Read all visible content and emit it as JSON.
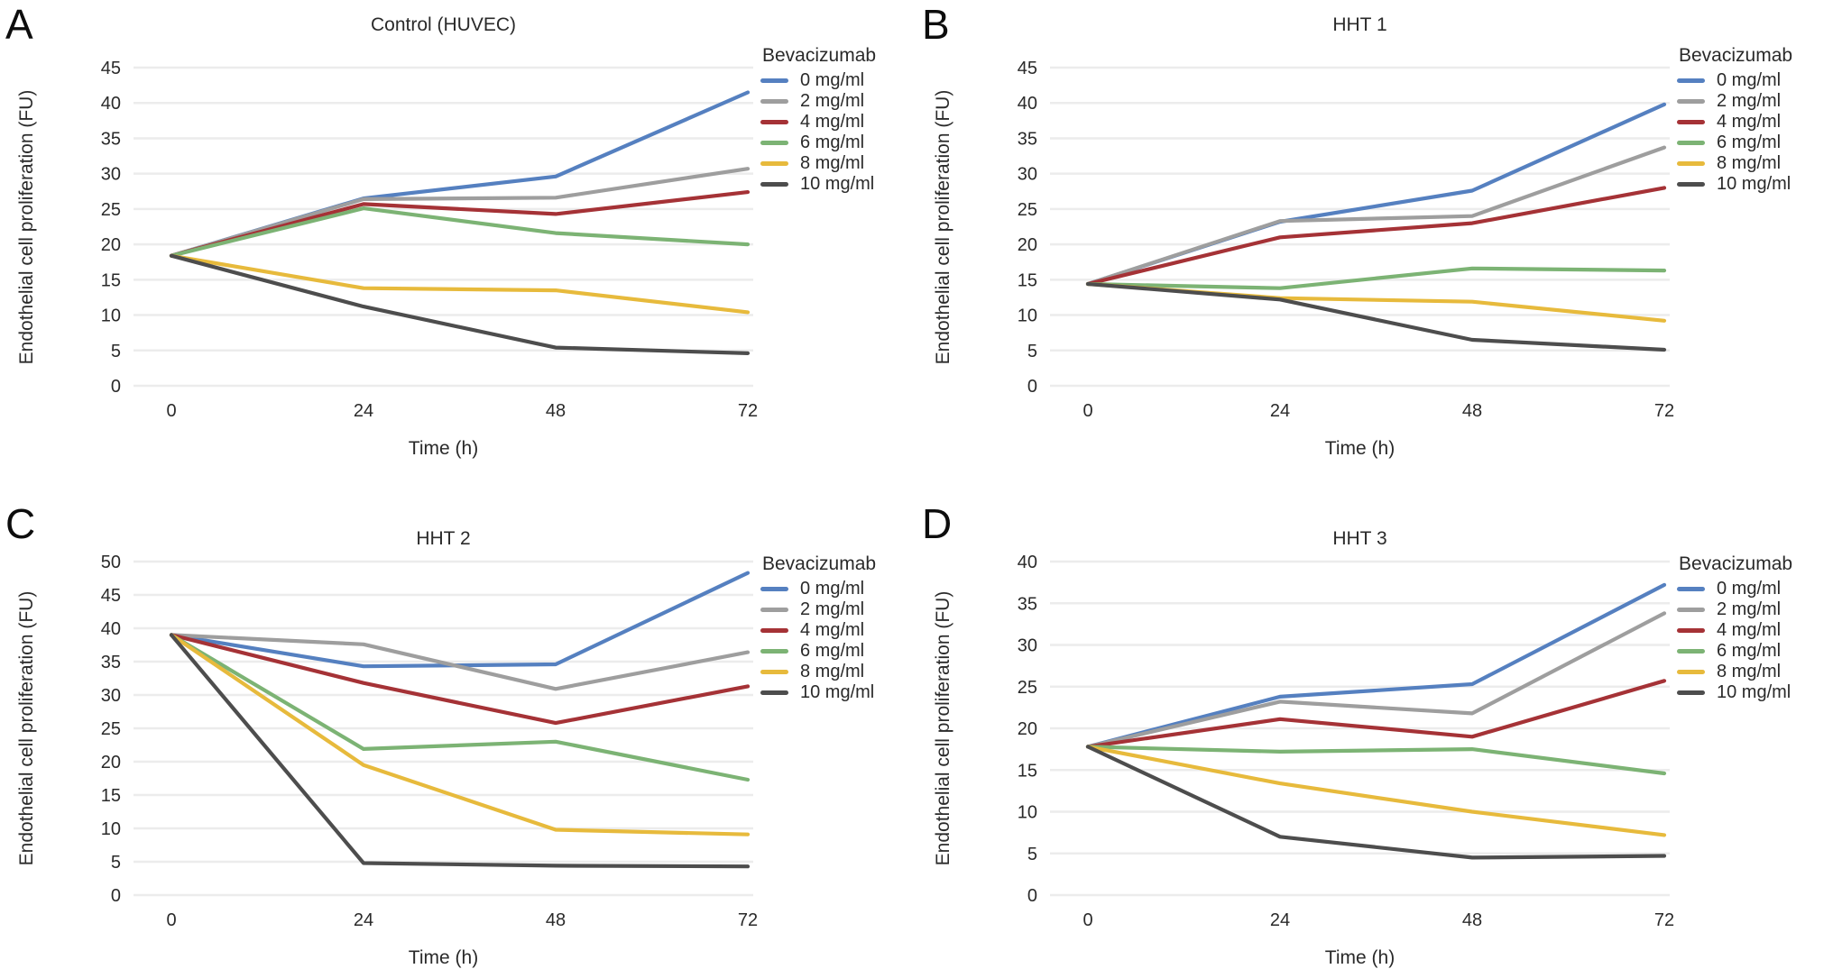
{
  "legend": {
    "title": "Bevacizumab"
  },
  "chart_data": [
    {
      "type": "line",
      "panel_letter": "A",
      "title": "Control (HUVEC)",
      "xlabel": "Time (h)",
      "ylabel": "Endothelial cell proliferation (FU)",
      "legend_title": "Bevacizumab",
      "x": [
        0,
        24,
        48,
        72
      ],
      "ylim": [
        0,
        45
      ],
      "ytick_step": 5,
      "grid": "horizontal",
      "legend_position": "right",
      "series": [
        {
          "name": "0 mg/ml",
          "color": "#5580c0",
          "values": [
            18.4,
            26.5,
            29.6,
            41.5
          ]
        },
        {
          "name": "2 mg/ml",
          "color": "#9e9e9e",
          "values": [
            18.4,
            26.4,
            26.6,
            30.7
          ]
        },
        {
          "name": "4 mg/ml",
          "color": "#a53236",
          "values": [
            18.4,
            25.7,
            24.3,
            27.4
          ]
        },
        {
          "name": "6 mg/ml",
          "color": "#7cb374",
          "values": [
            18.4,
            25.1,
            21.6,
            20.0
          ]
        },
        {
          "name": "8 mg/ml",
          "color": "#e7ba3c",
          "values": [
            18.4,
            13.8,
            13.5,
            10.4
          ]
        },
        {
          "name": "10 mg/ml",
          "color": "#4d4d4d",
          "values": [
            18.4,
            11.2,
            5.4,
            4.6
          ]
        }
      ]
    },
    {
      "type": "line",
      "panel_letter": "B",
      "title": "HHT 1",
      "xlabel": "Time (h)",
      "ylabel": "Endothelial cell proliferation (FU)",
      "legend_title": "Bevacizumab",
      "x": [
        0,
        24,
        48,
        72
      ],
      "ylim": [
        0,
        45
      ],
      "ytick_step": 5,
      "grid": "horizontal",
      "legend_position": "right",
      "series": [
        {
          "name": "0 mg/ml",
          "color": "#5580c0",
          "values": [
            14.4,
            23.2,
            27.6,
            39.8
          ]
        },
        {
          "name": "2 mg/ml",
          "color": "#9e9e9e",
          "values": [
            14.4,
            23.3,
            24.0,
            33.7
          ]
        },
        {
          "name": "4 mg/ml",
          "color": "#a53236",
          "values": [
            14.4,
            21.0,
            23.0,
            28.0
          ]
        },
        {
          "name": "6 mg/ml",
          "color": "#7cb374",
          "values": [
            14.4,
            13.8,
            16.6,
            16.3
          ]
        },
        {
          "name": "8 mg/ml",
          "color": "#e7ba3c",
          "values": [
            14.4,
            12.4,
            11.9,
            9.2
          ]
        },
        {
          "name": "10 mg/ml",
          "color": "#4d4d4d",
          "values": [
            14.4,
            12.2,
            6.5,
            5.1
          ]
        }
      ]
    },
    {
      "type": "line",
      "panel_letter": "C",
      "title": "HHT 2",
      "xlabel": "Time (h)",
      "ylabel": "Endothelial cell proliferation (FU)",
      "legend_title": "Bevacizumab",
      "x": [
        0,
        24,
        48,
        72
      ],
      "ylim": [
        0,
        50
      ],
      "ytick_step": 5,
      "grid": "horizontal",
      "legend_position": "right",
      "series": [
        {
          "name": "0 mg/ml",
          "color": "#5580c0",
          "values": [
            39.0,
            34.3,
            34.6,
            48.3
          ]
        },
        {
          "name": "2 mg/ml",
          "color": "#9e9e9e",
          "values": [
            39.0,
            37.6,
            30.9,
            36.4
          ]
        },
        {
          "name": "4 mg/ml",
          "color": "#a53236",
          "values": [
            39.0,
            31.8,
            25.8,
            31.3
          ]
        },
        {
          "name": "6 mg/ml",
          "color": "#7cb374",
          "values": [
            39.0,
            21.9,
            23.0,
            17.3
          ]
        },
        {
          "name": "8 mg/ml",
          "color": "#e7ba3c",
          "values": [
            39.0,
            19.5,
            9.8,
            9.1
          ]
        },
        {
          "name": "10 mg/ml",
          "color": "#4d4d4d",
          "values": [
            39.0,
            4.8,
            4.4,
            4.3
          ]
        }
      ]
    },
    {
      "type": "line",
      "panel_letter": "D",
      "title": "HHT 3",
      "xlabel": "Time (h)",
      "ylabel": "Endothelial cell proliferation (FU)",
      "legend_title": "Bevacizumab",
      "x": [
        0,
        24,
        48,
        72
      ],
      "ylim": [
        0,
        40
      ],
      "ytick_step": 5,
      "grid": "horizontal",
      "legend_position": "right",
      "series": [
        {
          "name": "0 mg/ml",
          "color": "#5580c0",
          "values": [
            17.8,
            23.8,
            25.3,
            37.2
          ]
        },
        {
          "name": "2 mg/ml",
          "color": "#9e9e9e",
          "values": [
            17.8,
            23.2,
            21.8,
            33.8
          ]
        },
        {
          "name": "4 mg/ml",
          "color": "#a53236",
          "values": [
            17.8,
            21.1,
            19.0,
            25.7
          ]
        },
        {
          "name": "6 mg/ml",
          "color": "#7cb374",
          "values": [
            17.8,
            17.2,
            17.5,
            14.6
          ]
        },
        {
          "name": "8 mg/ml",
          "color": "#e7ba3c",
          "values": [
            17.8,
            13.4,
            10.0,
            7.2
          ]
        },
        {
          "name": "10 mg/ml",
          "color": "#4d4d4d",
          "values": [
            17.8,
            7.0,
            4.5,
            4.7
          ]
        }
      ]
    }
  ]
}
